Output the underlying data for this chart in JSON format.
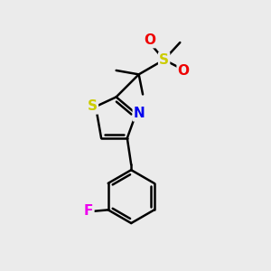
{
  "background_color": "#ebebeb",
  "bond_color": "#000000",
  "bond_width": 1.8,
  "atom_colors": {
    "S_thiazole": "#cccc00",
    "S_sulfonyl": "#cccc00",
    "N": "#0000ee",
    "O": "#ee0000",
    "F": "#ee00ee",
    "C": "#000000"
  },
  "font_size_ring": 11,
  "font_size_label": 9
}
